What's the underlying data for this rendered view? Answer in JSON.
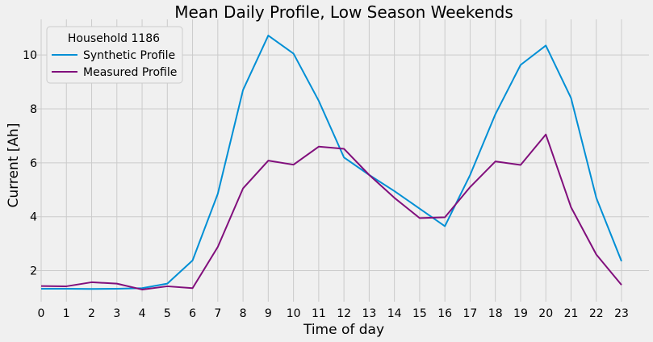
{
  "chart_data": {
    "type": "line",
    "title": "Mean Daily Profile, Low Season Weekends",
    "xlabel": "Time of day",
    "ylabel": "Current [Ah]",
    "x": [
      0,
      1,
      2,
      3,
      4,
      5,
      6,
      7,
      8,
      9,
      10,
      11,
      12,
      13,
      14,
      15,
      16,
      17,
      18,
      19,
      20,
      21,
      22,
      23
    ],
    "xticks": [
      "0",
      "1",
      "2",
      "3",
      "4",
      "5",
      "6",
      "7",
      "8",
      "9",
      "10",
      "11",
      "12",
      "13",
      "14",
      "15",
      "16",
      "17",
      "18",
      "19",
      "20",
      "21",
      "22",
      "23"
    ],
    "yticks": [
      "2",
      "4",
      "6",
      "8",
      "10"
    ],
    "xlim": [
      0,
      23
    ],
    "ylim": [
      0.85,
      11.2
    ],
    "grid": true,
    "legend": {
      "title": "Household 1186",
      "position": "top-left"
    },
    "series": [
      {
        "name": "Synthetic Profile",
        "color": "#008fd5",
        "values": [
          1.33,
          1.33,
          1.32,
          1.33,
          1.35,
          1.52,
          2.38,
          4.85,
          8.7,
          10.72,
          10.05,
          8.3,
          6.2,
          5.55,
          4.95,
          4.3,
          3.65,
          5.55,
          7.8,
          9.63,
          10.35,
          8.4,
          4.7,
          2.35
        ]
      },
      {
        "name": "Measured Profile",
        "color": "#810f7c",
        "values": [
          1.43,
          1.42,
          1.57,
          1.52,
          1.3,
          1.42,
          1.35,
          2.88,
          5.05,
          6.08,
          5.93,
          6.6,
          6.52,
          5.55,
          4.7,
          3.95,
          3.98,
          5.1,
          6.05,
          5.92,
          7.05,
          4.35,
          2.6,
          1.47
        ]
      }
    ]
  }
}
